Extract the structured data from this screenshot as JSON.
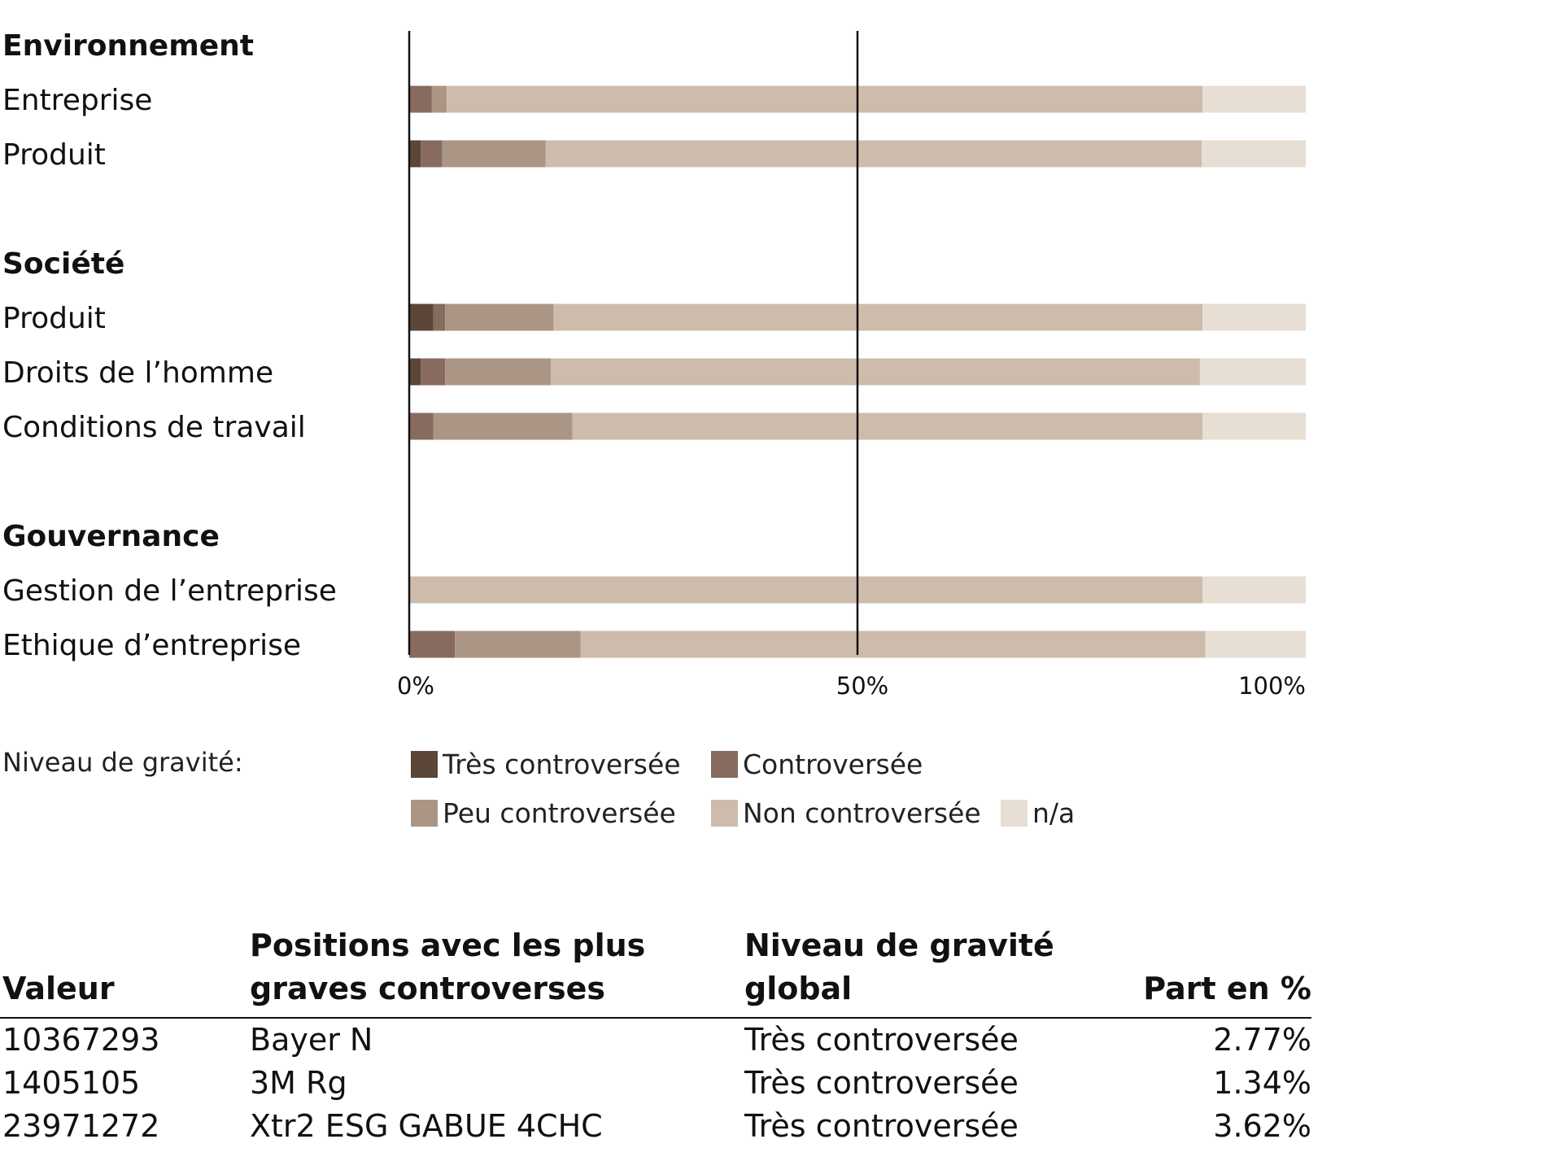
{
  "chart_data": {
    "type": "bar",
    "orientation": "horizontal",
    "stacked": true,
    "groups": [
      {
        "heading": "Environnement",
        "rows": [
          {
            "label": "Entreprise",
            "values": [
              0,
              2.5,
              1.7,
              84.3,
              11.5
            ]
          },
          {
            "label": "Produit",
            "values": [
              1.3,
              2.4,
              11.5,
              73.2,
              11.6
            ]
          }
        ]
      },
      {
        "heading": "Société",
        "rows": [
          {
            "label": "Produit",
            "values": [
              2.7,
              1.3,
              12.1,
              72.4,
              11.5
            ]
          },
          {
            "label": "Droits de l’homme",
            "values": [
              1.3,
              2.7,
              11.8,
              72.4,
              11.8
            ]
          }
        ]
      },
      {
        "heading": "",
        "rows": [
          {
            "label": "Conditions de travail",
            "values": [
              0,
              2.7,
              15.5,
              70.3,
              11.5
            ]
          }
        ]
      },
      {
        "heading": "Gouvernance",
        "rows": [
          {
            "label": "Gestion de l’entreprise",
            "values": [
              0,
              0,
              0,
              88.5,
              11.5
            ]
          },
          {
            "label": "Ethique d’entreprise",
            "values": [
              0,
              5.1,
              14.0,
              69.7,
              11.2
            ]
          }
        ]
      }
    ],
    "series": [
      {
        "name": "Très controversée",
        "color": "#5b4637"
      },
      {
        "name": "Controversée",
        "color": "#866b5e"
      },
      {
        "name": "Peu controversée",
        "color": "#ab9585"
      },
      {
        "name": "Non controversée",
        "color": "#cdbcab"
      },
      {
        "name": "n/a",
        "color": "#e7ded4"
      }
    ],
    "xlim": [
      0,
      100
    ],
    "x_ticks": [
      "0%",
      "50%",
      "100%"
    ],
    "gridlines_at": [
      0,
      50
    ],
    "legend_title": "Niveau de gravité:",
    "legend_placement": "bottom"
  },
  "table": {
    "headers": {
      "valeur": "Valeur",
      "positions_line1": "Positions avec les plus",
      "positions_line2": "graves controverses",
      "niveau_line1": "Niveau de gravité",
      "niveau_line2": "global",
      "part": "Part en %"
    },
    "rows": [
      {
        "valeur": "10367293",
        "position": "Bayer N",
        "niveau": "Très controversée",
        "part": "2.77%"
      },
      {
        "valeur": "1405105",
        "position": "3M Rg",
        "niveau": "Très controversée",
        "part": "1.34%"
      },
      {
        "valeur": "23971272",
        "position": "Xtr2 ESG GABUE 4CHC",
        "niveau": "Très controversée",
        "part": "3.62%"
      }
    ]
  }
}
